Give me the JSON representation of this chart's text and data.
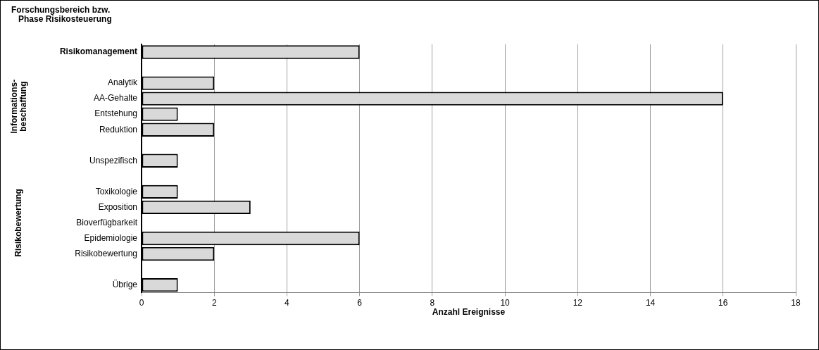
{
  "chart_data": {
    "type": "bar",
    "orientation": "horizontal",
    "title": "Forschungsbereich bzw. Phase Risikosteuerung",
    "xlabel": "Anzahl Ereignisse",
    "categories": [
      "Risikomanagement",
      null,
      "Analytik",
      "AA-Gehalte",
      "Entstehung",
      "Reduktion",
      null,
      "Unspezifisch",
      null,
      "Toxikologie",
      "Exposition",
      "Bioverfügbarkeit",
      "Epidemiologie",
      "Risikobewertung",
      null,
      "Übrige"
    ],
    "values": [
      6,
      null,
      2,
      16,
      1,
      2,
      null,
      1,
      null,
      1,
      3,
      0,
      6,
      2,
      null,
      1
    ],
    "color": "#d9d9d9",
    "xlim": [
      0,
      18
    ],
    "xticks": [
      0,
      2,
      4,
      6,
      8,
      10,
      12,
      14,
      16,
      18
    ],
    "grid": "x",
    "legend": false,
    "annotations": [
      "Informations-beschaffung",
      "Risikobewertung"
    ]
  }
}
